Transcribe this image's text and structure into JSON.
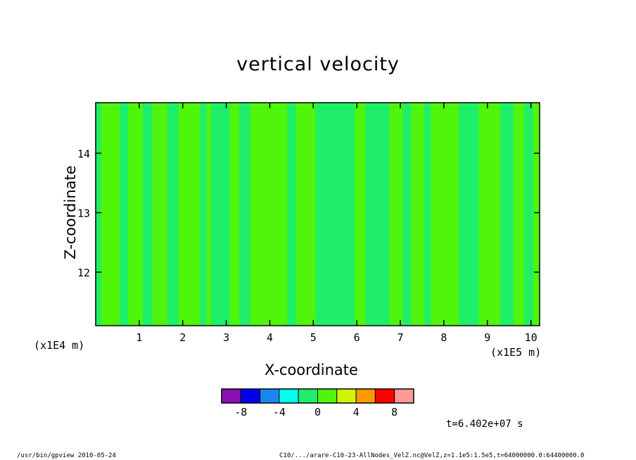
{
  "chart_data": {
    "type": "heatmap",
    "title": "vertical velocity",
    "xlabel": "X-coordinate",
    "ylabel": "Z-coordinate",
    "x_unit": "(x1E5 m)",
    "y_unit": "(x1E4 m)",
    "x_ticks": [
      "1",
      "2",
      "3",
      "4",
      "5",
      "6",
      "7",
      "8",
      "9",
      "10"
    ],
    "y_ticks": [
      "12",
      "13",
      "14"
    ],
    "xlim": [
      0,
      10.2
    ],
    "ylim": [
      11.1,
      14.85
    ],
    "columns": {
      "x_start": [
        0.0,
        0.12,
        0.55,
        0.75,
        1.08,
        1.3,
        1.65,
        1.9,
        2.4,
        2.55,
        2.65,
        3.08,
        3.3,
        3.55,
        3.95,
        4.4,
        4.6,
        5.05,
        5.35,
        5.95,
        6.2,
        6.5,
        6.75,
        7.05,
        7.25,
        7.55,
        7.7,
        8.1,
        8.35,
        8.8,
        9.3,
        9.6,
        9.85,
        10.05
      ],
      "x_end": [
        0.12,
        0.55,
        0.75,
        1.08,
        1.3,
        1.65,
        1.9,
        2.4,
        2.55,
        2.65,
        3.08,
        3.3,
        3.55,
        3.95,
        4.4,
        4.6,
        5.05,
        5.35,
        5.95,
        6.2,
        6.5,
        6.75,
        7.05,
        7.25,
        7.55,
        7.7,
        8.1,
        8.35,
        8.8,
        9.3,
        9.6,
        9.85,
        10.05,
        10.2
      ],
      "level": [
        0,
        1,
        0,
        1,
        0,
        1,
        0,
        1,
        0,
        1,
        0,
        1,
        0,
        1,
        1,
        0,
        1,
        0,
        0,
        1,
        0,
        0,
        1,
        0,
        1,
        0,
        1,
        1,
        0,
        1,
        0,
        1,
        0,
        1
      ]
    },
    "levels": [
      -10,
      -8,
      -6,
      -4,
      -2,
      0,
      2,
      4,
      6,
      8,
      10
    ],
    "colorbar": {
      "colors": [
        "#8B0FB0",
        "#0000EE",
        "#1A86F0",
        "#00FFF0",
        "#1FEE6A",
        "#4FF50A",
        "#D2F500",
        "#FF9900",
        "#FF0000",
        "#FF9898"
      ],
      "tick_labels": [
        "-8",
        "-4",
        "0",
        "4",
        "8"
      ]
    },
    "colors": {
      "level_0": "#1FEE6A",
      "level_1": "#4FF50A"
    }
  },
  "timestamp": "t=6.402e+07 s",
  "footer": {
    "left": "/usr/bin/gpview  2010-05-24",
    "right": "C10/.../arare-C10-23-AllNodes_VelZ.nc@VelZ,z=1.1e5:1.5e5,t=64000000.0:64400000.0"
  }
}
